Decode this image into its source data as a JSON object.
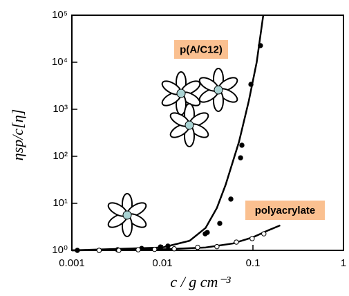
{
  "chart_data": {
    "type": "scatter",
    "xlabel": "c / g cm⁻³",
    "ylabel": "ηsp/c[η]",
    "xlog": true,
    "ylog": true,
    "xlim": [
      0.001,
      1
    ],
    "ylim": [
      1,
      100000
    ],
    "xticks": [
      0.001,
      0.01,
      0.1,
      1
    ],
    "yticks": [
      {
        "value": 1,
        "label": "10⁰"
      },
      {
        "value": 10,
        "label": "10¹"
      },
      {
        "value": 100,
        "label": "10²"
      },
      {
        "value": 1000,
        "label": "10³"
      },
      {
        "value": 10000,
        "label": "10⁴"
      },
      {
        "value": 100000,
        "label": "10⁵"
      }
    ],
    "label_color": "#fac090",
    "series": [
      {
        "name": "p(A/C12)",
        "color": "#000000",
        "marker_fill": "#000000",
        "x": [
          0.00115,
          0.002,
          0.0032,
          0.0059,
          0.0095,
          0.0115,
          0.0297,
          0.0313,
          0.043,
          0.057,
          0.073,
          0.0755,
          0.095,
          0.121
        ],
        "values": [
          1.0,
          1.0,
          1.03,
          1.1,
          1.18,
          1.23,
          2.25,
          2.4,
          3.74,
          12.3,
          93,
          172,
          3390,
          22600
        ],
        "fit": {
          "x": [
            0.001,
            0.01,
            0.02,
            0.03,
            0.04,
            0.05,
            0.07,
            0.09,
            0.11,
            0.13
          ],
          "values": [
            1.0,
            1.15,
            1.6,
            3,
            8,
            25,
            200,
            1500,
            10000,
            100000
          ]
        }
      },
      {
        "name": "polyacrylate",
        "color": "#000000",
        "marker_fill": "#ffffff",
        "x": [
          0.002,
          0.0033,
          0.0054,
          0.0082,
          0.0135,
          0.0245,
          0.04,
          0.0656,
          0.098,
          0.132
        ],
        "values": [
          1.0,
          1.0,
          1.03,
          1.05,
          1.08,
          1.16,
          1.2,
          1.5,
          1.78,
          2.25
        ],
        "fit": {
          "x": [
            0.001,
            0.01,
            0.03,
            0.06,
            0.1,
            0.15,
            0.2
          ],
          "values": [
            1.0,
            1.05,
            1.15,
            1.4,
            1.9,
            2.7,
            3.4
          ]
        }
      }
    ]
  }
}
